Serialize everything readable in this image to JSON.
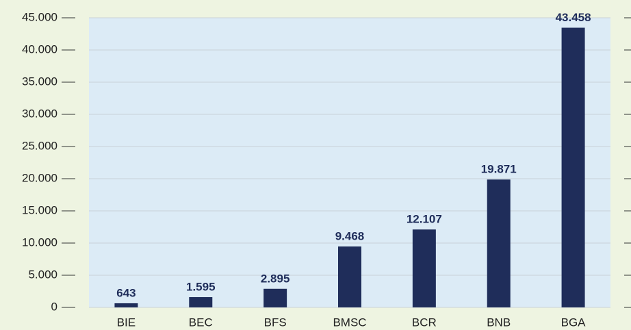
{
  "chart_data": {
    "type": "bar",
    "categories": [
      "BIE",
      "BEC",
      "BFS",
      "BMSC",
      "BCR",
      "BNB",
      "BGA"
    ],
    "values": [
      643,
      1595,
      2895,
      9468,
      12107,
      19871,
      43458
    ],
    "value_labels": [
      "643",
      "1.595",
      "2.895",
      "9.468",
      "12.107",
      "19.871",
      "43.458"
    ],
    "color": "#1f2d5a",
    "ylim": [
      0,
      45000
    ],
    "yticks": [
      0,
      {
        "value": 5000,
        "label": "5.000"
      },
      {
        "value": 10000,
        "label": "10.000"
      },
      {
        "value": 15000,
        "label": "15.000"
      },
      {
        "value": 20000,
        "label": "20.000"
      },
      {
        "value": 25000,
        "label": "25.000"
      },
      {
        "value": 30000,
        "label": "30.000"
      },
      {
        "value": 35000,
        "label": "35.000"
      },
      {
        "value": 40000,
        "label": "40.000"
      },
      {
        "value": 45000,
        "label": "45.000"
      }
    ],
    "grid": true
  }
}
